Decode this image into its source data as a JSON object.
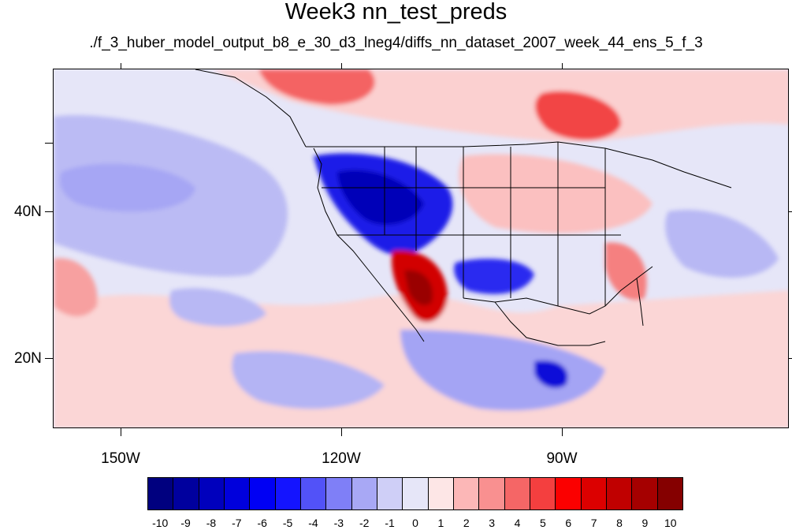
{
  "title": "Week3 nn_test_preds",
  "subtitle": "./f_3_huber_model_output_b8_e_30_d3_lneg4/diffs_nn_dataset_2007_week_44_ens_5_f_3",
  "map": {
    "lat_labels": [
      "40N",
      "20N"
    ],
    "lon_labels": [
      "150W",
      "120W",
      "90W"
    ],
    "background_color": "#e6e6f8"
  },
  "colorbar": {
    "labels": [
      "-10",
      "-9",
      "-8",
      "-7",
      "-6",
      "-5",
      "-4",
      "-3",
      "-2",
      "-1",
      "0",
      "1",
      "2",
      "3",
      "4",
      "5",
      "6",
      "7",
      "8",
      "9",
      "10"
    ],
    "colors": [
      "#00007f",
      "#00009e",
      "#0000bd",
      "#0000dc",
      "#0000f4",
      "#1414ff",
      "#5252f8",
      "#7f7ff7",
      "#a8a8f5",
      "#cfcff7",
      "#e6e6f8",
      "#fde6e6",
      "#fcb7b7",
      "#f99090",
      "#f56666",
      "#f43f3f",
      "#fb0000",
      "#dc0000",
      "#c00000",
      "#a50000",
      "#850000"
    ]
  }
}
